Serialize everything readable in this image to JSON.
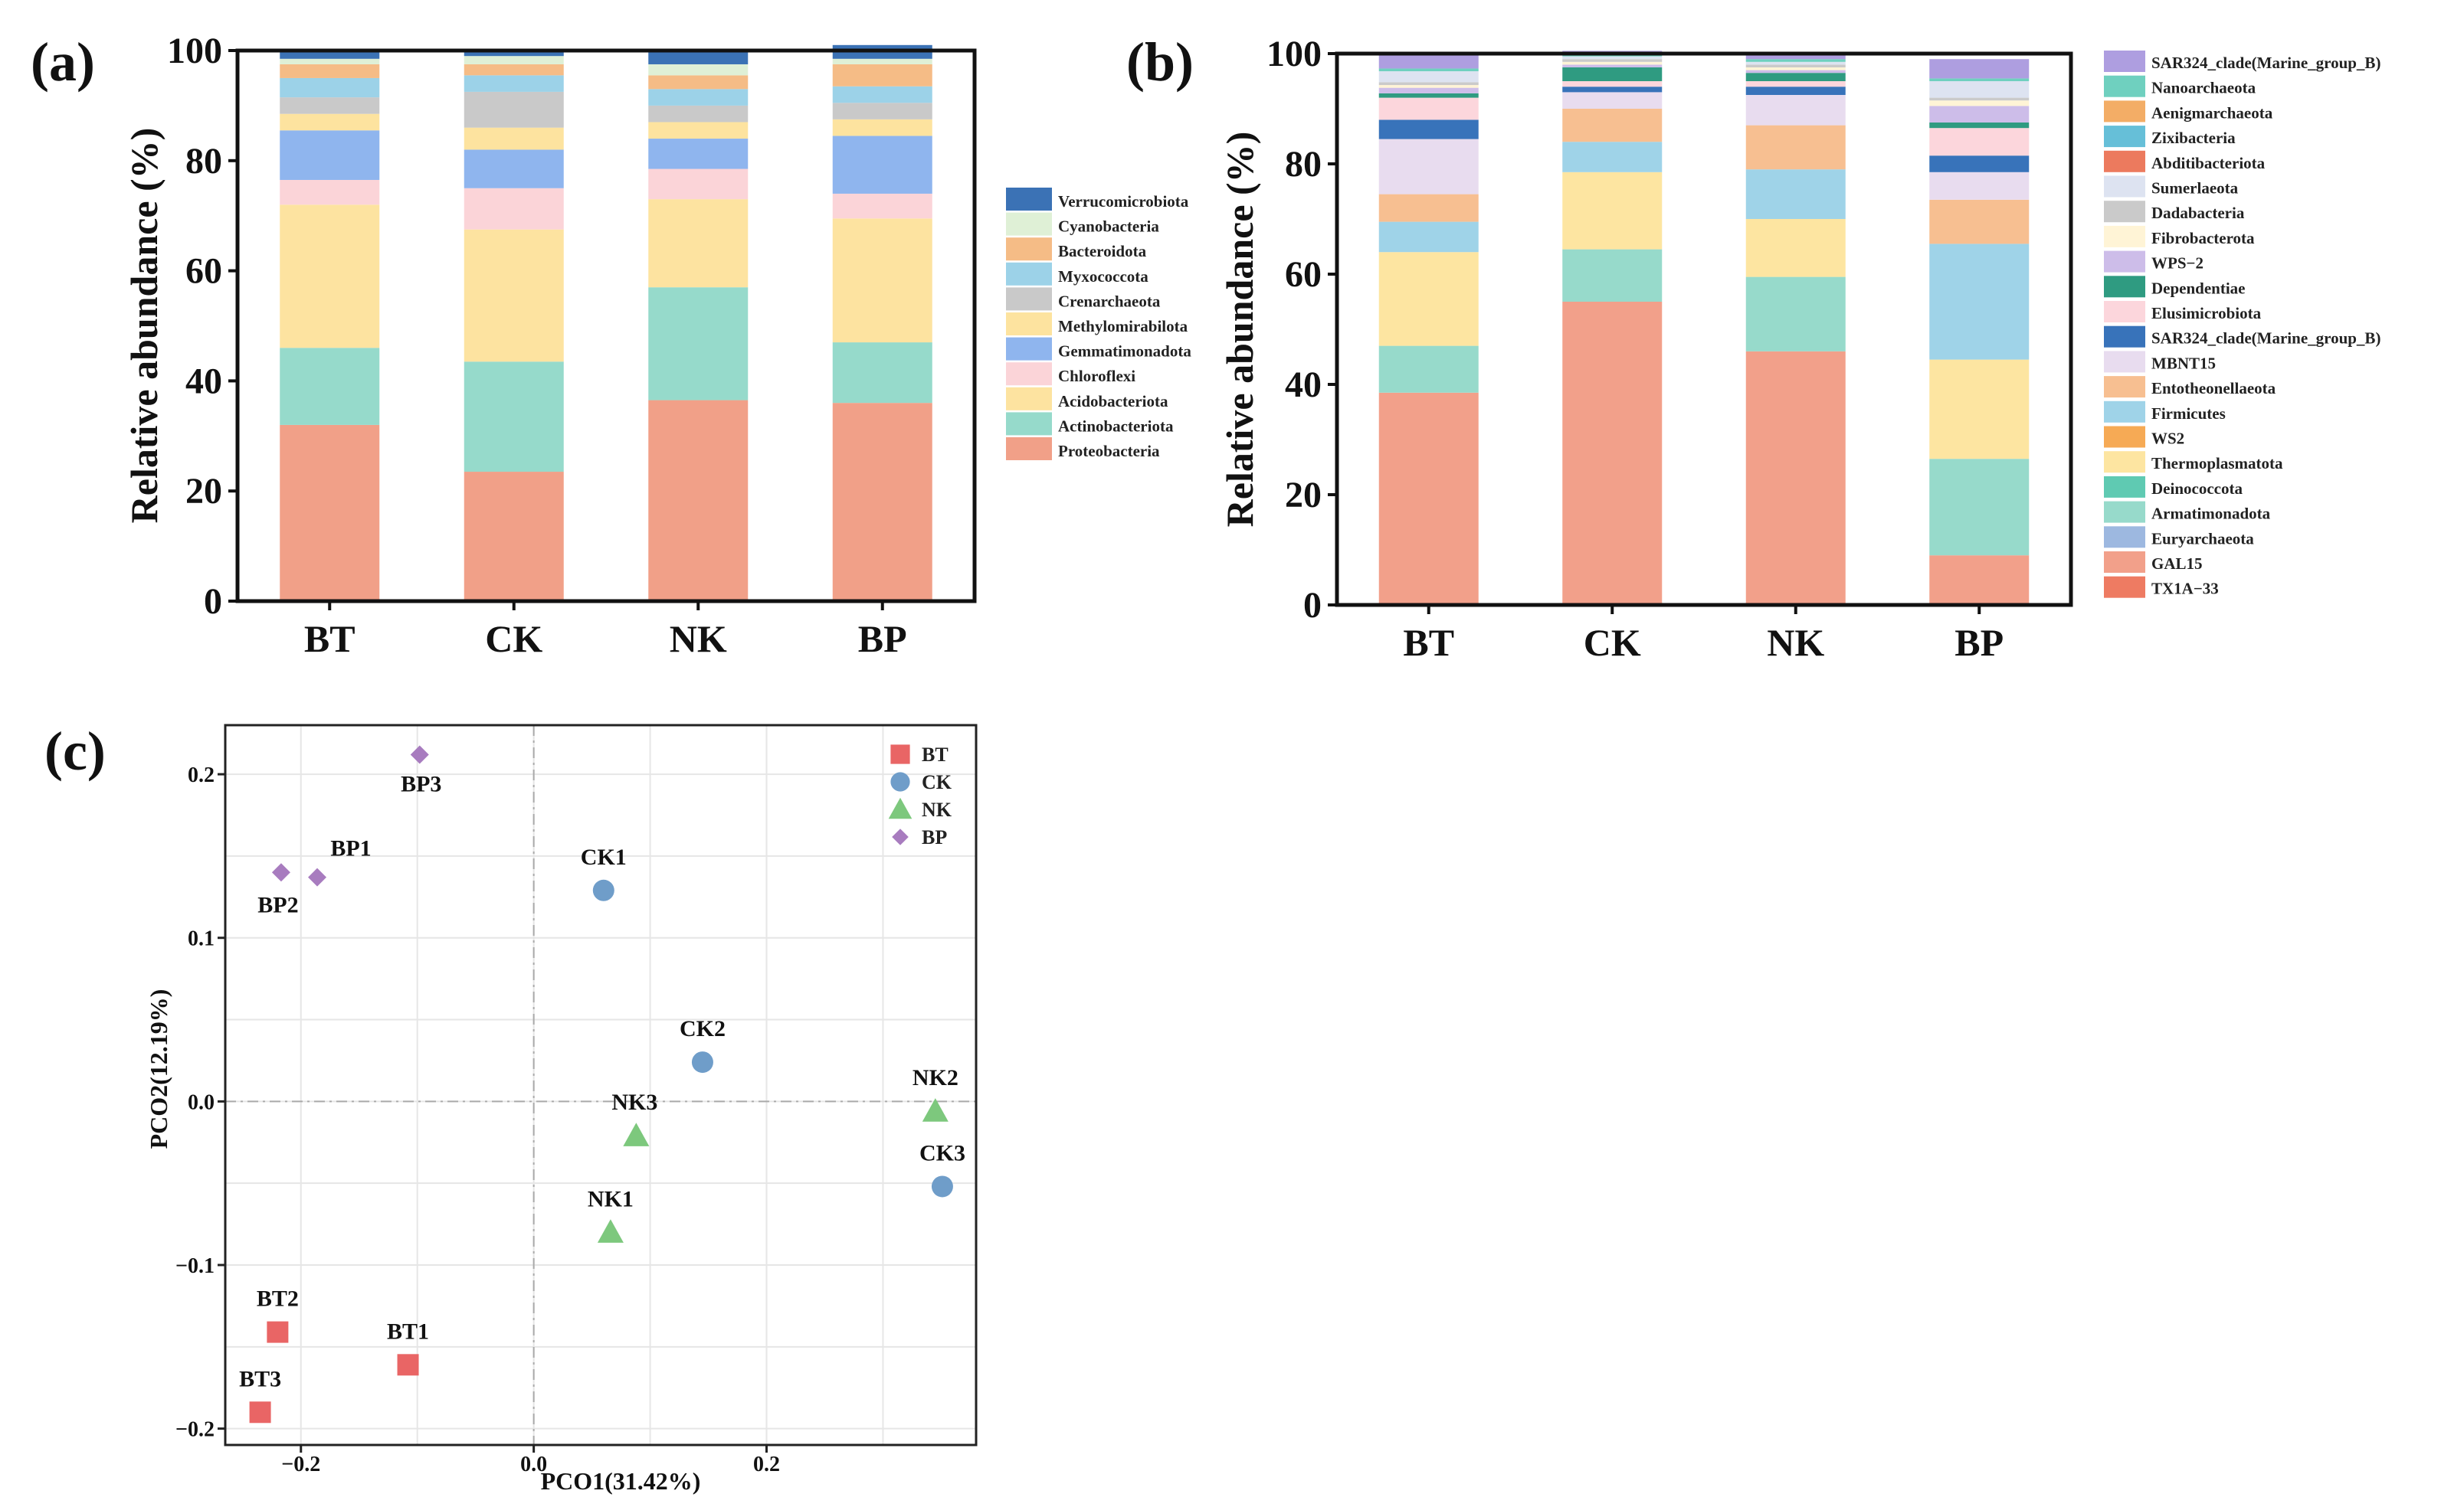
{
  "colors": {
    "Verrucomicrobiota": "#3b72b5",
    "Cyanobacteria": "#dff0d6",
    "Bacteroidota": "#f5bc86",
    "Myxococcota": "#9cd2e8",
    "Crenarchaeota": "#c9c9c9",
    "Methylomirabilota": "#fde39f",
    "Gemmatimonadota": "#8fb5ee",
    "Chloroflexi": "#fbd4d8",
    "Acidobacteriota": "#fde3a0",
    "Actinobacteriota": "#96dacb",
    "Proteobacteria": "#f1a088",
    "SAR324_clade(Marine_group_B)": "#ae9ee0",
    "Nanoarchaeota": "#6fd0bf",
    "Aenigmarchaeota": "#f3ad66",
    "Zixibacteria": "#66bfd8",
    "Abditibacteriota": "#ec7a5e",
    "Sumerlaeota": "#dde3f1",
    "Dadabacteria": "#cacaca",
    "Fibrobacterota": "#fff4d6",
    "WPS-2": "#cdbde9",
    "Dependentiae": "#2f9b81",
    "Elusimicrobiota": "#fcd6dc",
    "SAR324_clade(Marine_group_B)_2": "#3873ba",
    "MBNT15": "#e8dcef",
    "Entotheonellaeota": "#f7bf91",
    "Firmicutes": "#9fd3e8",
    "WS2": "#f6aa55",
    "Thermoplasmatota": "#fde5a1",
    "Deinococcota": "#5fcab2",
    "Armatimonadota": "#97dacb",
    "Euryarchaeota": "#9db8e0",
    "GAL15": "#f2a08a",
    "TX1A-33": "#ee7b62",
    "pco_BT": "#e96565",
    "pco_CK": "#6f9dc9",
    "pco_NK": "#7dc87d",
    "pco_BP": "#a87cbf"
  },
  "panel_labels": {
    "a": "(a)",
    "b": "(b)",
    "c": "(c)"
  },
  "chart_data": [
    {
      "type": "bar",
      "stacked": true,
      "title": "",
      "ylabel": "Relative abundance (%)",
      "ylim": [
        0,
        100
      ],
      "yticks": [
        "0",
        "20",
        "40",
        "60",
        "80",
        "100"
      ],
      "categories": [
        "BT",
        "CK",
        "NK",
        "BP"
      ],
      "series": [
        {
          "name": "Proteobacteria",
          "values": [
            32,
            23.5,
            36.5,
            36
          ]
        },
        {
          "name": "Actinobacteriota",
          "values": [
            14,
            20,
            20.5,
            11
          ]
        },
        {
          "name": "Acidobacteriota",
          "values": [
            26,
            24,
            16,
            22.5
          ]
        },
        {
          "name": "Chloroflexi",
          "values": [
            4.5,
            7.5,
            5.5,
            4.5
          ]
        },
        {
          "name": "Gemmatimonadota",
          "values": [
            9,
            7,
            5.5,
            10.5
          ]
        },
        {
          "name": "Methylomirabilota",
          "values": [
            3,
            4,
            3,
            3
          ]
        },
        {
          "name": "Crenarchaeota",
          "values": [
            3,
            6.5,
            3,
            3
          ]
        },
        {
          "name": "Myxococcota",
          "values": [
            3.5,
            3,
            3,
            3
          ]
        },
        {
          "name": "Bacteroidota",
          "values": [
            2.5,
            2,
            2.5,
            4
          ]
        },
        {
          "name": "Cyanobacteria",
          "values": [
            1,
            1.5,
            2,
            1
          ]
        },
        {
          "name": "Verrucomicrobiota",
          "values": [
            1.5,
            1,
            2.5,
            2.5
          ]
        }
      ],
      "legend": [
        "Verrucomicrobiota",
        "Cyanobacteria",
        "Bacteroidota",
        "Myxococcota",
        "Crenarchaeota",
        "Methylomirabilota",
        "Gemmatimonadota",
        "Chloroflexi",
        "Acidobacteriota",
        "Actinobacteriota",
        "Proteobacteria"
      ],
      "legend_display": [
        "Verrucomicrobiota",
        "Cyanobacteria",
        "Bacteroidota",
        "Myxococcota",
        "Crenarchaeota",
        "Methylomirabilota",
        "Gemmatimonadota",
        "Chloroflexi",
        "Acidobacteriota",
        "Actinobacteriota",
        "Proteobacteria"
      ]
    },
    {
      "type": "bar",
      "stacked": true,
      "title": "",
      "ylabel": "Relative abundance (%)",
      "ylim": [
        0,
        100
      ],
      "yticks": [
        "0",
        "20",
        "40",
        "60",
        "80",
        "100"
      ],
      "categories": [
        "BT",
        "CK",
        "NK",
        "BP"
      ],
      "series": [
        {
          "name": "GAL15",
          "values": [
            38.5,
            55,
            46,
            9
          ]
        },
        {
          "name": "Armatimonadota",
          "values": [
            8.5,
            9.5,
            13.5,
            17.5
          ]
        },
        {
          "name": "Thermoplasmatota",
          "values": [
            17,
            14,
            10.5,
            18
          ]
        },
        {
          "name": "Firmicutes",
          "values": [
            5.5,
            5.5,
            9,
            21
          ]
        },
        {
          "name": "Entotheonellaeota",
          "values": [
            5,
            6,
            8,
            8
          ]
        },
        {
          "name": "MBNT15",
          "values": [
            10,
            3,
            5.5,
            5
          ]
        },
        {
          "name": "SAR324_clade(Marine_group_B)_2",
          "values": [
            3.5,
            1,
            1.5,
            3
          ]
        },
        {
          "name": "Elusimicrobiota",
          "values": [
            4,
            1,
            1,
            5
          ]
        },
        {
          "name": "Dependentiae",
          "values": [
            0.8,
            2.5,
            1.5,
            1
          ]
        },
        {
          "name": "WPS-2",
          "values": [
            1,
            0.5,
            0.5,
            3
          ]
        },
        {
          "name": "Fibrobacterota",
          "values": [
            0.5,
            0.5,
            0.5,
            1
          ]
        },
        {
          "name": "Dadabacteria",
          "values": [
            0.5,
            0.5,
            0.5,
            0.5
          ]
        },
        {
          "name": "Sumerlaeota",
          "values": [
            2,
            0.5,
            0.5,
            3
          ]
        },
        {
          "name": "Nanoarchaeota",
          "values": [
            0.5,
            0.5,
            0.5,
            0.5
          ]
        },
        {
          "name": "SAR324_clade(Marine_group_B)",
          "values": [
            2.7,
            0.5,
            1,
            3.5
          ]
        }
      ],
      "legend": [
        "SAR324_clade(Marine_group_B)",
        "Nanoarchaeota",
        "Aenigmarchaeota",
        "Zixibacteria",
        "Abditibacteriota",
        "Sumerlaeota",
        "Dadabacteria",
        "Fibrobacterota",
        "WPS-2",
        "Dependentiae",
        "Elusimicrobiota",
        "SAR324_clade(Marine_group_B)_2",
        "MBNT15",
        "Entotheonellaeota",
        "Firmicutes",
        "WS2",
        "Thermoplasmatota",
        "Deinococcota",
        "Armatimonadota",
        "Euryarchaeota",
        "GAL15",
        "TX1A-33"
      ],
      "legend_display": [
        "SAR324_clade(Marine_group_B)",
        "Nanoarchaeota",
        "Aenigmarchaeota",
        "Zixibacteria",
        "Abditibacteriota",
        "Sumerlaeota",
        "Dadabacteria",
        "Fibrobacterota",
        "WPS−2",
        "Dependentiae",
        "Elusimicrobiota",
        "SAR324_clade(Marine_group_B)",
        "MBNT15",
        "Entotheonellaeota",
        "Firmicutes",
        "WS2",
        "Thermoplasmatota",
        "Deinococcota",
        "Armatimonadota",
        "Euryarchaeota",
        "GAL15",
        "TX1A−33"
      ]
    },
    {
      "type": "scatter",
      "title": "",
      "xlabel": "PCO1(31.42%)",
      "ylabel": "PCO2(12.19%)",
      "xlim": [
        -0.265,
        0.38
      ],
      "ylim": [
        -0.21,
        0.23
      ],
      "xticks": [
        -0.2,
        0.0,
        0.2
      ],
      "xtick_labels": [
        "−0.2",
        "0.0",
        "0.2"
      ],
      "yticks": [
        -0.2,
        -0.1,
        0.0,
        0.1,
        0.2
      ],
      "ytick_labels": [
        "−0.2",
        "−0.1",
        "0.0",
        "0.1",
        "0.2"
      ],
      "legend": [
        "BT",
        "CK",
        "NK",
        "BP"
      ],
      "groups": [
        {
          "name": "BT",
          "marker": "square",
          "points": [
            {
              "label": "BT1",
              "x": -0.108,
              "y": -0.161
            },
            {
              "label": "BT2",
              "x": -0.22,
              "y": -0.141
            },
            {
              "label": "BT3",
              "x": -0.235,
              "y": -0.19
            }
          ]
        },
        {
          "name": "CK",
          "marker": "circle",
          "points": [
            {
              "label": "CK1",
              "x": 0.06,
              "y": 0.129
            },
            {
              "label": "CK2",
              "x": 0.145,
              "y": 0.024
            },
            {
              "label": "CK3",
              "x": 0.351,
              "y": -0.052
            }
          ]
        },
        {
          "name": "NK",
          "marker": "triangle",
          "points": [
            {
              "label": "NK1",
              "x": 0.066,
              "y": -0.08
            },
            {
              "label": "NK2",
              "x": 0.345,
              "y": -0.006
            },
            {
              "label": "NK3",
              "x": 0.088,
              "y": -0.021
            }
          ]
        },
        {
          "name": "BP",
          "marker": "diamond",
          "points": [
            {
              "label": "BP1",
              "x": -0.186,
              "y": 0.137
            },
            {
              "label": "BP2",
              "x": -0.217,
              "y": 0.14
            },
            {
              "label": "BP3",
              "x": -0.098,
              "y": 0.212
            }
          ]
        }
      ]
    }
  ]
}
